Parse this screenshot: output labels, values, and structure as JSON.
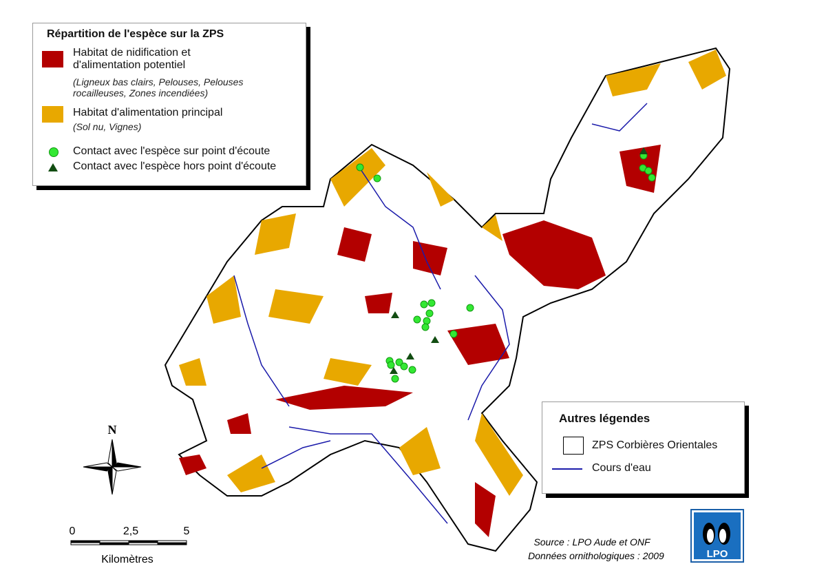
{
  "legend": {
    "title": "Répartition de l'espèce sur la ZPS",
    "items": [
      {
        "label": "Habitat de nidification et d'alimentation potentiel",
        "detail": "(Ligneux bas clairs, Pelouses, Pelouses rocailleuses, Zones incendiées)"
      },
      {
        "label": "Habitat d'alimentation principal",
        "detail": "(Sol nu, Vignes)"
      },
      {
        "label": "Contact avec l'espèce sur point d'écoute"
      },
      {
        "label": "Contact avec l'espèce hors point d'écoute"
      }
    ]
  },
  "other_legend": {
    "title": "Autres légendes",
    "items": [
      "ZPS Corbières Orientales",
      "Cours d'eau"
    ]
  },
  "north": "N",
  "scale": {
    "labels": [
      "0",
      "2,5",
      "5"
    ],
    "unit": "Kilomètres"
  },
  "source": [
    "Source : LPO Aude et ONF",
    "Données ornithologiques : 2009"
  ],
  "logo": "LPO"
}
